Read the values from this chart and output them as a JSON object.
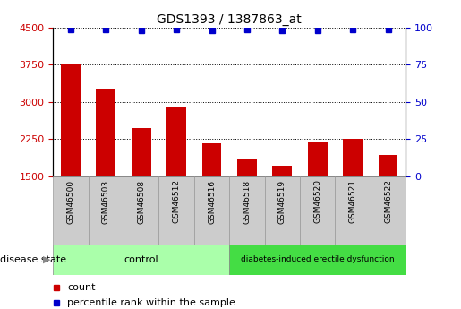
{
  "title": "GDS1393 / 1387863_at",
  "categories": [
    "GSM46500",
    "GSM46503",
    "GSM46508",
    "GSM46512",
    "GSM46516",
    "GSM46518",
    "GSM46519",
    "GSM46520",
    "GSM46521",
    "GSM46522"
  ],
  "counts": [
    3780,
    3260,
    2480,
    2890,
    2170,
    1860,
    1720,
    2200,
    2250,
    1920
  ],
  "percentiles": [
    99,
    99,
    98,
    99,
    98,
    99,
    98,
    98,
    99,
    99
  ],
  "ylim_left": [
    1500,
    4500
  ],
  "ylim_right": [
    0,
    100
  ],
  "yticks_left": [
    1500,
    2250,
    3000,
    3750,
    4500
  ],
  "yticks_right": [
    0,
    25,
    50,
    75,
    100
  ],
  "bar_color": "#cc0000",
  "dot_color": "#0000cc",
  "control_indices": [
    0,
    1,
    2,
    3,
    4
  ],
  "disease_indices": [
    5,
    6,
    7,
    8,
    9
  ],
  "control_label": "control",
  "disease_label": "diabetes-induced erectile dysfunction",
  "group_label": "disease state",
  "control_color": "#aaffaa",
  "disease_color": "#44dd44",
  "legend_count_label": "count",
  "legend_percentile_label": "percentile rank within the sample",
  "xticklabel_bg": "#cccccc",
  "bar_width": 0.55,
  "dot_size": 4
}
